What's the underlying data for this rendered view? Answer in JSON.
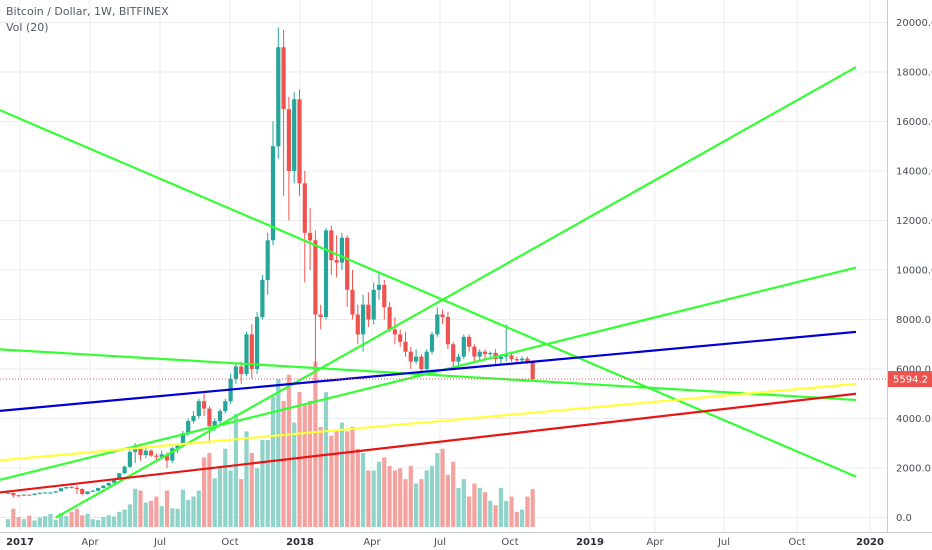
{
  "header": {
    "title": "Bitcoin / Dollar, 1W, BITFINEX",
    "indicator": "Vol (20)"
  },
  "colors": {
    "up": "#26a69a",
    "down": "#ef5350",
    "vol_up": "#8fd3c9",
    "vol_down": "#f3a2a0",
    "trend_green": "#33ff33",
    "trend_blue": "#0000d6",
    "trend_yellow": "#ffff3c",
    "trend_red": "#e81515",
    "price_label": "#ef5350",
    "grid": "#e9ecf1"
  },
  "chart_data": {
    "type": "candlestick",
    "title": "Bitcoin / Dollar, 1W, BITFINEX",
    "x_tick_labels": [
      "2017",
      "Apr",
      "Jul",
      "Oct",
      "2018",
      "Apr",
      "Jul",
      "Oct",
      "2019",
      "Apr",
      "Jul",
      "Oct",
      "2020"
    ],
    "y_tick_labels": [
      "0.0",
      "2000.0",
      "4000.0",
      "6000.0",
      "8000.0",
      "10000.0",
      "12000.0",
      "14000.0",
      "16000.0",
      "18000.0",
      "20000.0"
    ],
    "ylim": [
      0,
      20500
    ],
    "last_price_label": "5594.2",
    "last_price": 5594.2,
    "grid": true,
    "ohlc": [
      [
        1000,
        1040,
        950,
        1000
      ],
      [
        1000,
        1010,
        800,
        900
      ],
      [
        900,
        920,
        840,
        890
      ],
      [
        890,
        930,
        880,
        920
      ],
      [
        920,
        930,
        900,
        910
      ],
      [
        910,
        980,
        900,
        960
      ],
      [
        960,
        1020,
        940,
        1000
      ],
      [
        1000,
        1030,
        980,
        1010
      ],
      [
        1010,
        1040,
        970,
        1010
      ],
      [
        1010,
        1080,
        1000,
        1060
      ],
      [
        1060,
        1200,
        1050,
        1180
      ],
      [
        1180,
        1240,
        1150,
        1230
      ],
      [
        1230,
        1260,
        1180,
        1200
      ],
      [
        1200,
        1290,
        950,
        1150
      ],
      [
        1150,
        1180,
        900,
        950
      ],
      [
        950,
        1060,
        930,
        1050
      ],
      [
        1050,
        1120,
        1030,
        1080
      ],
      [
        1080,
        1200,
        1070,
        1190
      ],
      [
        1190,
        1300,
        1180,
        1290
      ],
      [
        1290,
        1410,
        1270,
        1400
      ],
      [
        1400,
        1550,
        1380,
        1540
      ],
      [
        1540,
        1800,
        1530,
        1790
      ],
      [
        1790,
        2100,
        1750,
        2050
      ],
      [
        2050,
        2800,
        2000,
        2650
      ],
      [
        2650,
        3000,
        2200,
        2800
      ],
      [
        2800,
        2900,
        2300,
        2520
      ],
      [
        2520,
        2800,
        2400,
        2700
      ],
      [
        2700,
        2750,
        2450,
        2500
      ],
      [
        2500,
        2600,
        2300,
        2450
      ],
      [
        2450,
        2700,
        2350,
        2550
      ],
      [
        2550,
        2620,
        2000,
        2300
      ],
      [
        2300,
        2850,
        2200,
        2800
      ],
      [
        2800,
        2950,
        2600,
        2900
      ],
      [
        2900,
        3500,
        2850,
        3400
      ],
      [
        3400,
        4000,
        3300,
        3900
      ],
      [
        3900,
        4300,
        3800,
        4100
      ],
      [
        4100,
        4800,
        4000,
        4700
      ],
      [
        4700,
        5000,
        4100,
        4400
      ],
      [
        4400,
        4500,
        3000,
        3700
      ],
      [
        3700,
        4000,
        3500,
        3900
      ],
      [
        3900,
        4400,
        3800,
        4300
      ],
      [
        4300,
        4800,
        4200,
        4700
      ],
      [
        4700,
        5800,
        4600,
        5600
      ],
      [
        5600,
        6200,
        5400,
        6100
      ],
      [
        6100,
        6300,
        5400,
        5800
      ],
      [
        5800,
        7500,
        5700,
        7400
      ],
      [
        7400,
        7800,
        5600,
        6000
      ],
      [
        6000,
        8300,
        5800,
        8100
      ],
      [
        8100,
        9800,
        8000,
        9600
      ],
      [
        9600,
        11500,
        9000,
        11200
      ],
      [
        11200,
        16000,
        11000,
        15000
      ],
      [
        15000,
        19800,
        14500,
        19000
      ],
      [
        19000,
        19700,
        13000,
        16500
      ],
      [
        16500,
        17000,
        12000,
        14000
      ],
      [
        14000,
        17200,
        13500,
        16900
      ],
      [
        16900,
        17300,
        13000,
        13500
      ],
      [
        13500,
        14000,
        9500,
        11500
      ],
      [
        11500,
        12500,
        10000,
        11200
      ],
      [
        11200,
        11600,
        6000,
        8200
      ],
      [
        8200,
        8600,
        7600,
        8100
      ],
      [
        8100,
        11700,
        8000,
        11600
      ],
      [
        11600,
        11800,
        9800,
        10400
      ],
      [
        10400,
        11400,
        9700,
        10300
      ],
      [
        10300,
        11500,
        10000,
        11300
      ],
      [
        11300,
        11400,
        8500,
        9200
      ],
      [
        9200,
        10000,
        8000,
        8200
      ],
      [
        8200,
        8600,
        7000,
        7400
      ],
      [
        7400,
        9000,
        6700,
        8600
      ],
      [
        8600,
        9100,
        7700,
        8000
      ],
      [
        8000,
        9500,
        7800,
        9200
      ],
      [
        9200,
        9900,
        8800,
        9400
      ],
      [
        9400,
        9600,
        8000,
        8500
      ],
      [
        8500,
        8700,
        7500,
        7600
      ],
      [
        7600,
        8100,
        7000,
        7400
      ],
      [
        7400,
        7600,
        6900,
        7100
      ],
      [
        7100,
        7500,
        6500,
        6700
      ],
      [
        6700,
        6900,
        6000,
        6300
      ],
      [
        6300,
        6800,
        6200,
        6500
      ],
      [
        6500,
        6600,
        5800,
        6000
      ],
      [
        6000,
        6800,
        5900,
        6700
      ],
      [
        6700,
        7500,
        6600,
        7400
      ],
      [
        7400,
        8500,
        7300,
        8200
      ],
      [
        8200,
        8400,
        7800,
        8100
      ],
      [
        8100,
        8300,
        6800,
        7000
      ],
      [
        7000,
        7100,
        6000,
        6300
      ],
      [
        6300,
        6600,
        6100,
        6500
      ],
      [
        6500,
        7400,
        6400,
        7300
      ],
      [
        7300,
        7400,
        6700,
        6900
      ],
      [
        6900,
        7000,
        6300,
        6500
      ],
      [
        6500,
        6800,
        6300,
        6700
      ],
      [
        6700,
        6800,
        6400,
        6600
      ],
      [
        6600,
        6700,
        6500,
        6650
      ],
      [
        6650,
        6800,
        6200,
        6400
      ],
      [
        6400,
        6600,
        6200,
        6500
      ],
      [
        6500,
        7800,
        6300,
        6550
      ],
      [
        6550,
        6700,
        6300,
        6400
      ],
      [
        6400,
        6500,
        6250,
        6350
      ],
      [
        6350,
        6500,
        6300,
        6420
      ],
      [
        6420,
        6500,
        6200,
        6300
      ],
      [
        6300,
        6350,
        5500,
        5594.2
      ]
    ],
    "volume_max": 4100,
    "volume": [
      180,
      420,
      230,
      180,
      260,
      150,
      220,
      250,
      300,
      170,
      320,
      250,
      350,
      420,
      270,
      300,
      180,
      160,
      230,
      270,
      240,
      350,
      400,
      520,
      880,
      840,
      560,
      600,
      700,
      480,
      840,
      430,
      420,
      860,
      620,
      700,
      840,
      1600,
      1700,
      1120,
      1400,
      1800,
      1300,
      2600,
      1100,
      2200,
      1700,
      1350,
      2000,
      2000,
      3000,
      3400,
      2900,
      3500,
      2400,
      3100,
      2800,
      2900,
      3800,
      2300,
      3100,
      2100,
      2200,
      2400,
      2200,
      2300,
      1800,
      1700,
      1300,
      1300,
      1500,
      1600,
      1400,
      1300,
      1350,
      1100,
      1400,
      1000,
      1100,
      1300,
      1400,
      1700,
      1800,
      1200,
      1500,
      900,
      1100,
      700,
      1000,
      900,
      800,
      600,
      500,
      900,
      600,
      700,
      350,
      400,
      700,
      870
    ],
    "trendlines": [
      {
        "color": "trend_green",
        "from": [
          "2016-12-19",
          16500
        ],
        "to": [
          "2020-01-27",
          1650
        ]
      },
      {
        "color": "trend_green",
        "from": [
          "2016-12-19",
          6800
        ],
        "to": [
          "2020-01-27",
          4750
        ]
      },
      {
        "color": "trend_green",
        "from": [
          "2017-03-06",
          0
        ],
        "to": [
          "2020-01-27",
          18200
        ]
      },
      {
        "color": "trend_green",
        "from": [
          "2016-12-19",
          1500
        ],
        "to": [
          "2020-01-27",
          10100
        ]
      },
      {
        "color": "trend_blue",
        "from": [
          "2016-12-19",
          4300
        ],
        "to": [
          "2020-01-27",
          7500
        ]
      },
      {
        "color": "trend_yellow",
        "from": [
          "2016-12-19",
          2300
        ],
        "to": [
          "2020-01-27",
          5400
        ]
      },
      {
        "color": "trend_red",
        "from": [
          "2016-12-19",
          1000
        ],
        "to": [
          "2020-01-27",
          5000
        ]
      }
    ]
  }
}
